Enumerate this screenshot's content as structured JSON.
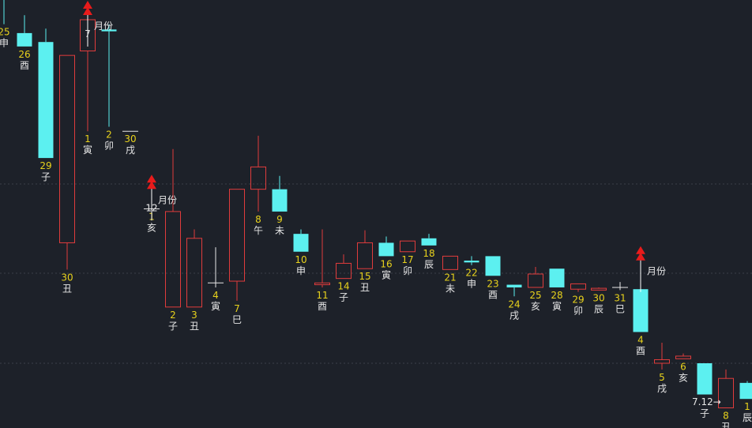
{
  "chart_data": {
    "type": "candlestick",
    "title": "",
    "xlabel": "",
    "ylabel": "",
    "grid": true,
    "colors": {
      "up": "#e03c3c",
      "down": "#5cf0f0",
      "flat": "#e6e6e6",
      "date_num": "#e8d21c",
      "branch": "#e6e6e6",
      "marker": "#e81b1b",
      "grid": "#3a3f49",
      "background": "#1d2129"
    },
    "candles": [
      {
        "day": "25",
        "branch": "申",
        "dir": "down",
        "open": 4.3,
        "close": 4.1,
        "high": 4.55,
        "low": 3.8
      },
      {
        "day": "26",
        "branch": "酉",
        "dir": "down",
        "open": 3.7,
        "close": 3.55,
        "high": 3.9,
        "low": 3.55
      },
      {
        "day": "29",
        "branch": "子",
        "dir": "down",
        "open": 3.6,
        "close": 2.3,
        "high": 3.75,
        "low": 2.3
      },
      {
        "day": "30",
        "branch": "丑",
        "dir": "up",
        "open": 1.35,
        "close": 3.45,
        "high": 3.45,
        "low": 1.05
      },
      {
        "day": "1",
        "branch": "寅",
        "dir": "up",
        "open": 3.5,
        "close": 3.85,
        "high": 3.85,
        "low": 2.6
      },
      {
        "day": "2",
        "branch": "卯",
        "dir": "down",
        "open": 3.74,
        "close": 3.72,
        "high": 3.8,
        "low": 2.65
      },
      {
        "day": "30",
        "branch": "戌",
        "dir": "flat",
        "open": 2.6,
        "close": 2.6,
        "high": 2.6,
        "low": 2.6
      },
      {
        "day": "1",
        "branch": "亥",
        "dir": "flat",
        "open": 1.73,
        "close": 1.73,
        "high": 1.9,
        "low": 1.73
      },
      {
        "day": "2",
        "branch": "子",
        "dir": "up",
        "open": 0.63,
        "close": 1.7,
        "high": 2.4,
        "low": 0.63
      },
      {
        "day": "3",
        "branch": "丑",
        "dir": "up",
        "open": 0.63,
        "close": 1.4,
        "high": 1.5,
        "low": 0.63
      },
      {
        "day": "4",
        "branch": "寅",
        "dir": "flat",
        "open": 0.9,
        "close": 0.9,
        "high": 1.3,
        "low": 0.85
      },
      {
        "day": "7",
        "branch": "巳",
        "dir": "up",
        "open": 0.92,
        "close": 1.95,
        "high": 1.95,
        "low": 0.7
      },
      {
        "day": "8",
        "branch": "午",
        "dir": "up",
        "open": 1.95,
        "close": 2.2,
        "high": 2.55,
        "low": 1.7
      },
      {
        "day": "9",
        "branch": "未",
        "dir": "down",
        "open": 1.95,
        "close": 1.7,
        "high": 2.1,
        "low": 1.7
      },
      {
        "day": "10",
        "branch": "申",
        "dir": "down",
        "open": 1.45,
        "close": 1.25,
        "high": 1.5,
        "low": 1.25
      },
      {
        "day": "11",
        "branch": "酉",
        "dir": "up",
        "open": 0.88,
        "close": 0.9,
        "high": 1.5,
        "low": 0.85
      },
      {
        "day": "14",
        "branch": "子",
        "dir": "up",
        "open": 0.95,
        "close": 1.12,
        "high": 1.22,
        "low": 0.95
      },
      {
        "day": "15",
        "branch": "丑",
        "dir": "up",
        "open": 1.06,
        "close": 1.35,
        "high": 1.49,
        "low": 1.06
      },
      {
        "day": "16",
        "branch": "寅",
        "dir": "down",
        "open": 1.35,
        "close": 1.2,
        "high": 1.42,
        "low": 1.2
      },
      {
        "day": "17",
        "branch": "卯",
        "dir": "up",
        "open": 1.25,
        "close": 1.37,
        "high": 1.37,
        "low": 1.25
      },
      {
        "day": "18",
        "branch": "辰",
        "dir": "down",
        "open": 1.4,
        "close": 1.32,
        "high": 1.45,
        "low": 1.32
      },
      {
        "day": "21",
        "branch": "未",
        "dir": "up",
        "open": 1.05,
        "close": 1.2,
        "high": 1.2,
        "low": 1.05
      },
      {
        "day": "22",
        "branch": "申",
        "dir": "down",
        "open": 1.15,
        "close": 1.13,
        "high": 1.2,
        "low": 1.1
      },
      {
        "day": "23",
        "branch": "酉",
        "dir": "down",
        "open": 1.2,
        "close": 0.98,
        "high": 1.2,
        "low": 0.98
      },
      {
        "day": "24",
        "branch": "戌",
        "dir": "down",
        "open": 0.88,
        "close": 0.85,
        "high": 0.88,
        "low": 0.75
      },
      {
        "day": "25",
        "branch": "亥",
        "dir": "up",
        "open": 0.85,
        "close": 1.0,
        "high": 1.08,
        "low": 0.85
      },
      {
        "day": "28",
        "branch": "寅",
        "dir": "down",
        "open": 1.06,
        "close": 0.85,
        "high": 1.06,
        "low": 0.85
      },
      {
        "day": "29",
        "branch": "卯",
        "dir": "up",
        "open": 0.83,
        "close": 0.89,
        "high": 0.89,
        "low": 0.8
      },
      {
        "day": "30",
        "branch": "辰",
        "dir": "up",
        "open": 0.82,
        "close": 0.84,
        "high": 0.85,
        "low": 0.82
      },
      {
        "day": "31",
        "branch": "巳",
        "dir": "flat",
        "open": 0.85,
        "close": 0.85,
        "high": 0.91,
        "low": 0.82
      },
      {
        "day": "4",
        "branch": "酉",
        "dir": "down",
        "open": 0.83,
        "close": 0.35,
        "high": 1.1,
        "low": 0.35
      },
      {
        "day": "5",
        "branch": "戌",
        "dir": "up",
        "open": 0.0,
        "close": 0.04,
        "high": 0.23,
        "low": -0.07
      },
      {
        "day": "6",
        "branch": "亥",
        "dir": "up",
        "open": 0.05,
        "close": 0.08,
        "high": 0.11,
        "low": 0.05
      },
      {
        "day": "",
        "branch": "子",
        "dir": "down",
        "open": 0.0,
        "close": -0.35,
        "high": 0.0,
        "low": -0.35
      },
      {
        "day": "8",
        "branch": "丑",
        "dir": "up",
        "open": -0.5,
        "close": -0.17,
        "high": -0.07,
        "low": -0.5
      },
      {
        "day": "1",
        "branch": "辰",
        "dir": "down",
        "open": -0.22,
        "close": -0.4,
        "high": -0.2,
        "low": -0.4
      }
    ],
    "annotations": [
      {
        "label": "7",
        "text": "月份",
        "at": 4
      },
      {
        "label": "12",
        "text": "月份",
        "at": 7
      },
      {
        "label": "",
        "text": "月份",
        "at": 30
      }
    ],
    "arrow_label": "7.12→"
  }
}
